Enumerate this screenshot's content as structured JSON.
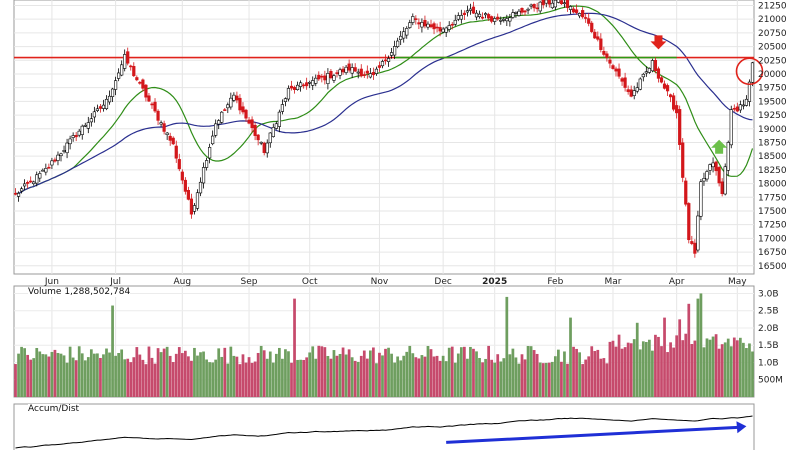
{
  "chart_data": [
    {
      "type": "candlestick",
      "title": "",
      "price_axis": {
        "ticks": [
          16500,
          16750,
          17000,
          17250,
          17500,
          17750,
          18000,
          18250,
          18500,
          18750,
          19000,
          19250,
          19500,
          19750,
          20000,
          20250,
          20500,
          20750,
          21000,
          21250
        ],
        "labels": [
          "16500",
          "16750",
          "17000",
          "17250",
          "17500",
          "17750",
          "18000",
          "18250",
          "18500",
          "18750",
          "19000",
          "19250",
          "19500",
          "19750",
          "20000",
          "20250",
          "20500",
          "20750",
          "21000",
          "21250"
        ],
        "ylim": [
          16350,
          21350
        ]
      },
      "months": [
        {
          "label": "Jun",
          "index": 12
        },
        {
          "label": "Jul",
          "index": 33
        },
        {
          "label": "Aug",
          "index": 55
        },
        {
          "label": "Sep",
          "index": 77
        },
        {
          "label": "Oct",
          "index": 97
        },
        {
          "label": "Nov",
          "index": 120
        },
        {
          "label": "Dec",
          "index": 141
        },
        {
          "label": "2025",
          "index": 158
        },
        {
          "label": "Feb",
          "index": 178
        },
        {
          "label": "Mar",
          "index": 197
        },
        {
          "label": "Apr",
          "index": 218
        },
        {
          "label": "May",
          "index": 238
        }
      ],
      "bars": 244,
      "anchors": [
        [
          0,
          17800
        ],
        [
          10,
          18250
        ],
        [
          20,
          18900
        ],
        [
          30,
          19500
        ],
        [
          36,
          20300
        ],
        [
          45,
          19400
        ],
        [
          52,
          18700
        ],
        [
          58,
          17450
        ],
        [
          66,
          19100
        ],
        [
          72,
          19600
        ],
        [
          82,
          18600
        ],
        [
          90,
          19700
        ],
        [
          100,
          19900
        ],
        [
          110,
          20100
        ],
        [
          118,
          19950
        ],
        [
          125,
          20500
        ],
        [
          131,
          21000
        ],
        [
          140,
          20800
        ],
        [
          150,
          21150
        ],
        [
          158,
          21000
        ],
        [
          165,
          21100
        ],
        [
          172,
          21250
        ],
        [
          179,
          21350
        ],
        [
          188,
          21000
        ],
        [
          196,
          20200
        ],
        [
          203,
          19600
        ],
        [
          210,
          20200
        ],
        [
          218,
          19300
        ],
        [
          222,
          17000
        ],
        [
          224,
          16700
        ],
        [
          226,
          18000
        ],
        [
          230,
          18400
        ],
        [
          233,
          17800
        ],
        [
          236,
          19300
        ],
        [
          241,
          19500
        ],
        [
          243,
          20150
        ]
      ],
      "horizontal_lines": [
        {
          "level": 20300,
          "color": "#e0231b"
        },
        {
          "level": 20300,
          "color": "#2e9a14",
          "from_index": 125
        }
      ],
      "annotations": [
        {
          "type": "down-arrow",
          "index": 212,
          "value": 20450,
          "color": "#e0231b"
        },
        {
          "type": "up-arrow",
          "index": 232,
          "value": 18800,
          "color": "#6cc04a"
        },
        {
          "type": "circle",
          "index": 243,
          "value": 20050,
          "color": "#e0231b"
        }
      ],
      "moving_averages": [
        {
          "period": 20,
          "color": "#2f8d17"
        },
        {
          "period": 50,
          "color": "#2a2f8f"
        }
      ]
    },
    {
      "type": "bar",
      "title": "Volume 1,288,502,784",
      "y_ticks": [
        {
          "value": 500000000,
          "label": "500M"
        },
        {
          "value": 1000000000,
          "label": "1.0B"
        },
        {
          "value": 1500000000,
          "label": "1.5B"
        },
        {
          "value": 2000000000,
          "label": "2.0B"
        },
        {
          "value": 2500000000,
          "label": "2.5B"
        },
        {
          "value": 3000000000,
          "label": "3.0B"
        }
      ],
      "ylim": [
        0,
        3100000000
      ],
      "spikes": [
        {
          "index": 32,
          "value": 2650000000
        },
        {
          "index": 92,
          "value": 2850000000
        },
        {
          "index": 162,
          "value": 2900000000
        },
        {
          "index": 183,
          "value": 2300000000
        },
        {
          "index": 205,
          "value": 2150000000
        },
        {
          "index": 214,
          "value": 2300000000
        },
        {
          "index": 219,
          "value": 2250000000
        },
        {
          "index": 222,
          "value": 2700000000
        },
        {
          "index": 225,
          "value": 2850000000
        },
        {
          "index": 226,
          "value": 3000000000
        }
      ]
    },
    {
      "type": "line",
      "title": "Accum/Dist",
      "trendline": {
        "from_index": 142,
        "from_value": 0.1,
        "to_index": 241,
        "to_value": 0.55,
        "color": "#1f2fd6"
      }
    }
  ],
  "labels": {
    "volume_title": "Volume 1,288,502,784",
    "ad_title": "Accum/Dist"
  }
}
